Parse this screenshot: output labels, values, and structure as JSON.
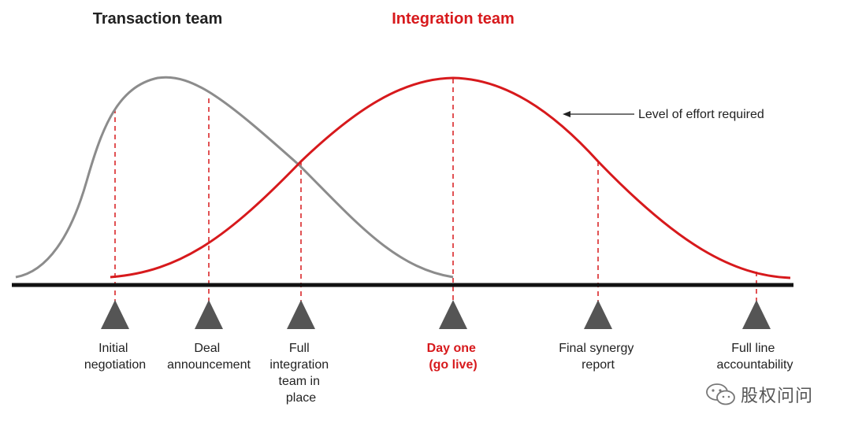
{
  "header": {
    "transaction_title": "Transaction team",
    "integration_title": "Integration team"
  },
  "annotation": {
    "effort_label": "Level of effort required"
  },
  "milestones": [
    {
      "lines": [
        "Initial",
        "negotiation"
      ],
      "highlight": false
    },
    {
      "lines": [
        "Deal",
        "announcement"
      ],
      "highlight": false
    },
    {
      "lines": [
        "Full",
        "integration",
        "team in",
        "place"
      ],
      "highlight": false
    },
    {
      "lines": [
        "Day one",
        "(go live)"
      ],
      "highlight": true
    },
    {
      "lines": [
        "Final synergy",
        "report"
      ],
      "highlight": false
    },
    {
      "lines": [
        "Full line",
        "accountability"
      ],
      "highlight": false
    }
  ],
  "colors": {
    "transaction_curve": "#8c8c8c",
    "integration_curve": "#d7191c",
    "highlight_text": "#d7191c",
    "axis": "#111111",
    "marker": "#555555",
    "dashed": "#d7191c"
  },
  "watermark": {
    "text": "股权问问",
    "icon": "wechat-icon"
  }
}
